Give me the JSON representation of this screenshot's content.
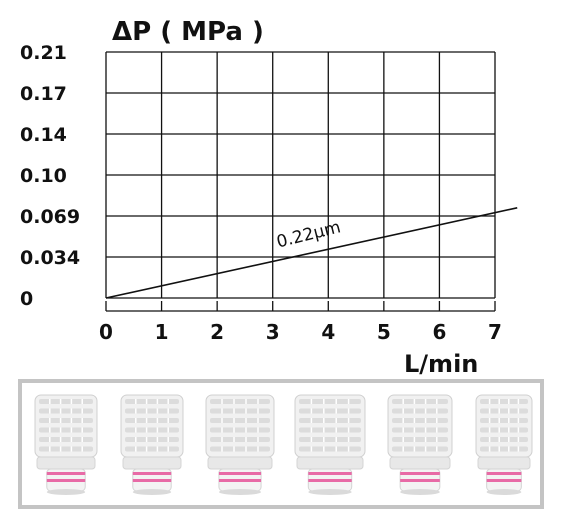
{
  "chart_data": {
    "type": "line",
    "title": "ΔP ( MPa )",
    "xlabel": "L/min",
    "ylabel": "ΔP ( MPa )",
    "x_ticks": [
      "0",
      "1",
      "2",
      "3",
      "4",
      "5",
      "6",
      "7"
    ],
    "y_ticks": [
      "0",
      "0.034",
      "0.069",
      "0.10",
      "0.14",
      "0.17",
      "0.21"
    ],
    "grid": true,
    "series": [
      {
        "name": "0.22μm",
        "x": [
          0,
          7.4
        ],
        "y": [
          0,
          0.077
        ]
      }
    ],
    "colors": {
      "line": "#111111",
      "grid": "#111111",
      "strip_border": "#c4c4c4",
      "ring_pink": "#e86aa6"
    }
  },
  "photo_strip": {
    "items": [
      "filter-cartridge",
      "filter-cartridge",
      "filter-cartridge",
      "filter-cartridge",
      "filter-cartridge",
      "filter-cartridge"
    ]
  }
}
